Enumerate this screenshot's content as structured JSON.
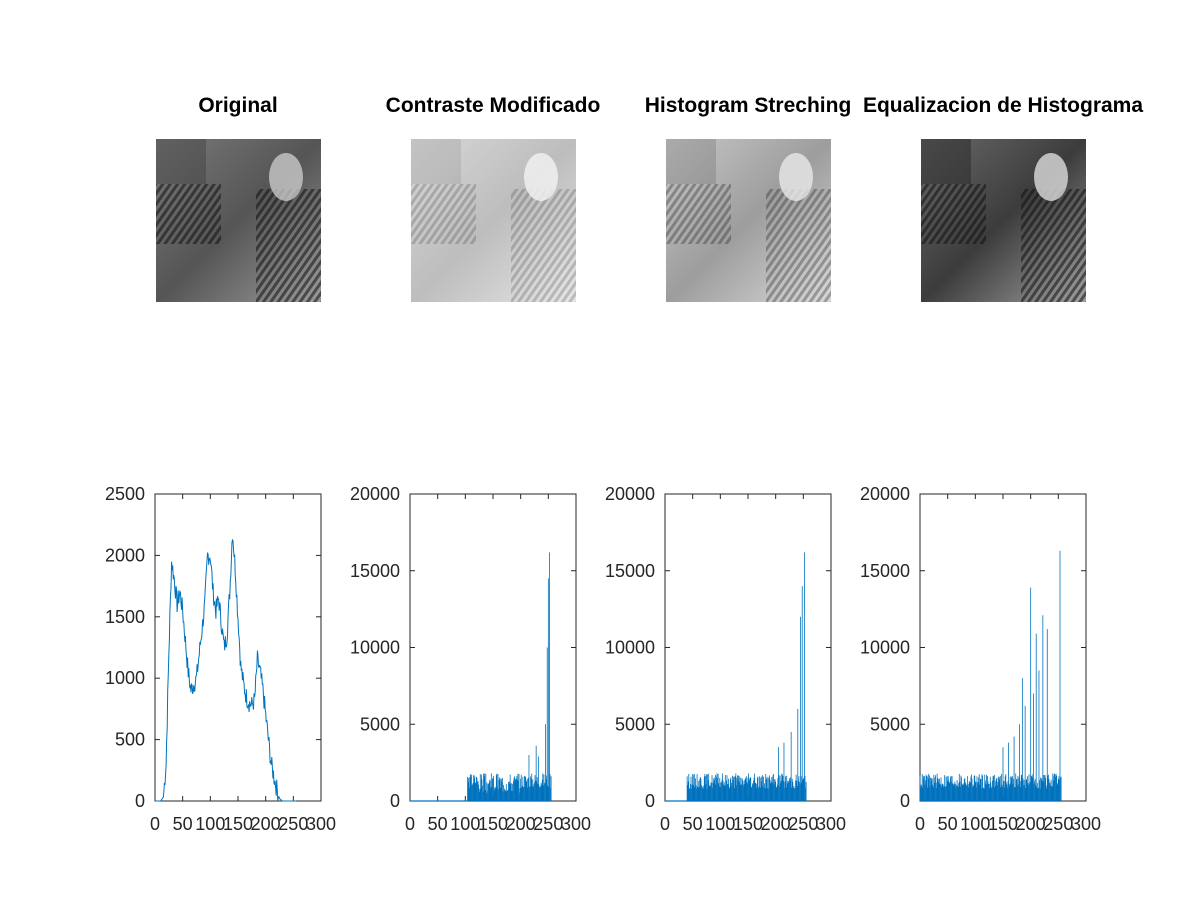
{
  "images": [
    {
      "title": "Original",
      "tone": "normal"
    },
    {
      "title": "Contraste Modificado",
      "tone": "light"
    },
    {
      "title": "Histogram Streching",
      "tone": "stretched"
    },
    {
      "title": "Equalizacion de Histograma",
      "tone": "equalized"
    }
  ],
  "chart_data": [
    {
      "type": "line",
      "title": "",
      "xlabel": "",
      "ylabel": "",
      "xlim": [
        0,
        300
      ],
      "ylim": [
        0,
        2500
      ],
      "xticks": [
        "0",
        "50",
        "100",
        "150",
        "200",
        "250",
        "300"
      ],
      "yticks": [
        "0",
        "500",
        "1000",
        "1500",
        "2000",
        "2500"
      ],
      "series_color": "#0072bd",
      "x": [
        0,
        10,
        15,
        20,
        25,
        30,
        35,
        40,
        45,
        50,
        55,
        60,
        65,
        70,
        75,
        80,
        85,
        90,
        95,
        100,
        105,
        110,
        115,
        120,
        125,
        130,
        135,
        140,
        145,
        150,
        155,
        160,
        165,
        170,
        175,
        180,
        185,
        190,
        195,
        200,
        205,
        210,
        215,
        220,
        225,
        230,
        235,
        240,
        245,
        250,
        255
      ],
      "y": [
        0,
        0,
        30,
        300,
        1200,
        1950,
        1800,
        1600,
        1700,
        1550,
        1300,
        1050,
        900,
        950,
        1000,
        1200,
        1400,
        1600,
        2000,
        2000,
        1700,
        1550,
        1650,
        1450,
        1250,
        1350,
        1700,
        2200,
        1900,
        1500,
        1100,
        950,
        850,
        800,
        780,
        820,
        1150,
        1050,
        900,
        700,
        500,
        300,
        200,
        100,
        20,
        0,
        0,
        0,
        0,
        0,
        0
      ]
    },
    {
      "type": "bar",
      "title": "",
      "xlabel": "",
      "ylabel": "",
      "xlim": [
        0,
        300
      ],
      "ylim": [
        0,
        20000
      ],
      "xticks": [
        "0",
        "50",
        "100",
        "150",
        "200",
        "250",
        "300"
      ],
      "yticks": [
        "0",
        "5000",
        "10000",
        "15000",
        "20000"
      ],
      "series_color": "#0072bd",
      "x_start": 104,
      "x_end": 255,
      "peaks": [
        {
          "x": 215,
          "y": 3000
        },
        {
          "x": 228,
          "y": 3600
        },
        {
          "x": 232,
          "y": 2900
        },
        {
          "x": 245,
          "y": 5000
        },
        {
          "x": 248,
          "y": 10000
        },
        {
          "x": 250,
          "y": 14500
        },
        {
          "x": 252,
          "y": 16200
        }
      ]
    },
    {
      "type": "bar",
      "title": "",
      "xlabel": "",
      "ylabel": "",
      "xlim": [
        0,
        300
      ],
      "ylim": [
        0,
        20000
      ],
      "xticks": [
        "0",
        "50",
        "100",
        "150",
        "200",
        "250",
        "300"
      ],
      "yticks": [
        "0",
        "5000",
        "10000",
        "15000",
        "20000"
      ],
      "series_color": "#0072bd",
      "x_start": 40,
      "x_end": 255,
      "peaks": [
        {
          "x": 205,
          "y": 3500
        },
        {
          "x": 215,
          "y": 3800
        },
        {
          "x": 228,
          "y": 4500
        },
        {
          "x": 240,
          "y": 6000
        },
        {
          "x": 245,
          "y": 12000
        },
        {
          "x": 248,
          "y": 14000
        },
        {
          "x": 252,
          "y": 16200
        }
      ]
    },
    {
      "type": "bar",
      "title": "",
      "xlabel": "",
      "ylabel": "",
      "xlim": [
        0,
        300
      ],
      "ylim": [
        0,
        20000
      ],
      "xticks": [
        "0",
        "50",
        "100",
        "150",
        "200",
        "250",
        "300"
      ],
      "yticks": [
        "0",
        "5000",
        "10000",
        "15000",
        "20000"
      ],
      "series_color": "#0072bd",
      "x_start": 0,
      "x_end": 255,
      "peaks": [
        {
          "x": 150,
          "y": 3500
        },
        {
          "x": 160,
          "y": 3800
        },
        {
          "x": 170,
          "y": 4200
        },
        {
          "x": 180,
          "y": 5000
        },
        {
          "x": 185,
          "y": 8000
        },
        {
          "x": 190,
          "y": 6200
        },
        {
          "x": 200,
          "y": 13900
        },
        {
          "x": 205,
          "y": 7000
        },
        {
          "x": 210,
          "y": 10900
        },
        {
          "x": 215,
          "y": 8500
        },
        {
          "x": 222,
          "y": 12100
        },
        {
          "x": 230,
          "y": 11200
        },
        {
          "x": 253,
          "y": 16300
        }
      ]
    }
  ]
}
